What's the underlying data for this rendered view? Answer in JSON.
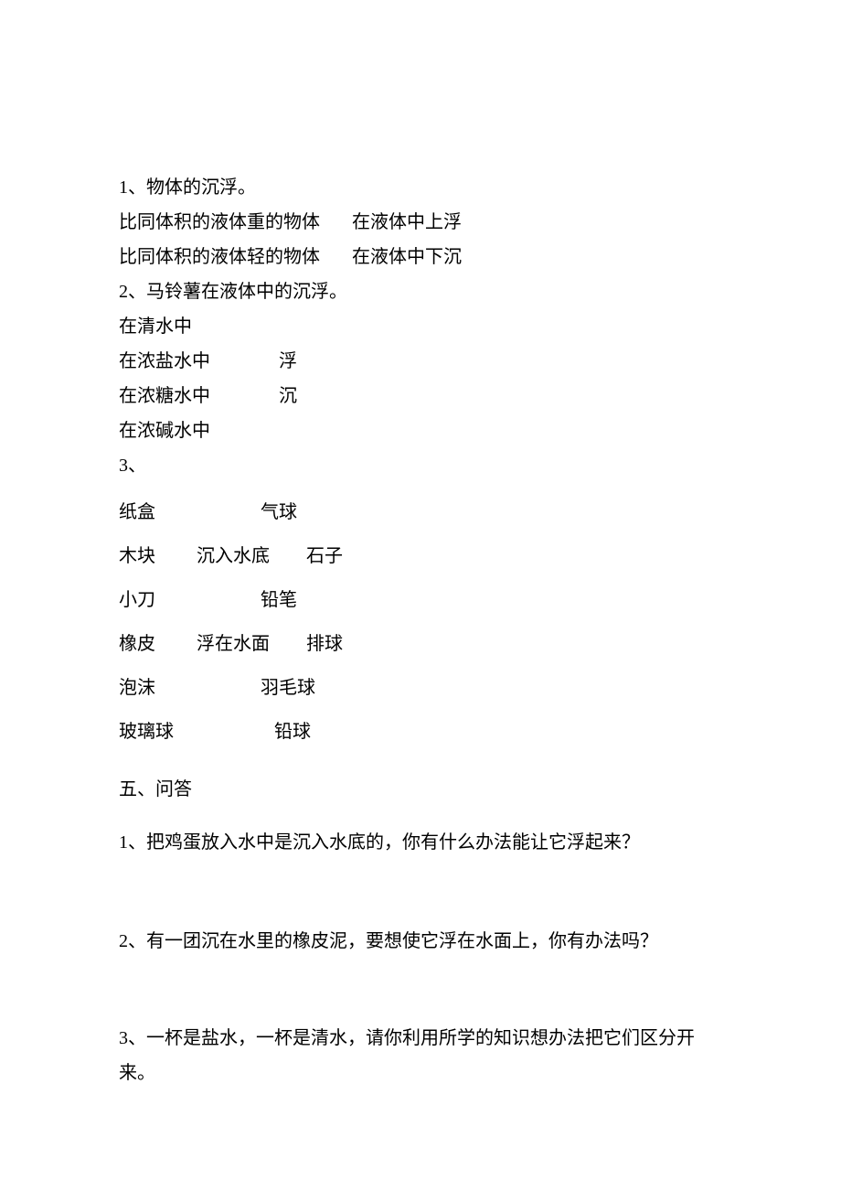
{
  "q1": {
    "title_num": "1",
    "title_sep": "、",
    "title_text": "物体的沉浮。",
    "row1_left": "比同体积的液体重的物体",
    "row1_right": "在液体中上浮",
    "row2_left": "比同体积的液体轻的物体",
    "row2_right": "在液体中下沉"
  },
  "q2": {
    "title_num": "2",
    "title_sep": "、",
    "title_text": "马铃薯在液体中的沉浮。",
    "r1": "在清水中",
    "r2": "在浓盐水中",
    "r2_right": "浮",
    "r3": "在浓糖水中",
    "r3_right": "沉",
    "r4": "在浓碱水中"
  },
  "q3": {
    "title_num": "3",
    "title_sep": "、",
    "col_left": [
      "纸盒",
      "木块",
      "小刀",
      "橡皮",
      "泡沫",
      "玻璃球"
    ],
    "col_mid": [
      "",
      "沉入水底",
      "",
      "浮在水面",
      "",
      ""
    ],
    "col_right": [
      "气球",
      "石子",
      "铅笔",
      "排球",
      "羽毛球",
      "铅球"
    ]
  },
  "section5": {
    "heading": "五、问答",
    "q1_num": "1",
    "q1_sep": "、",
    "q1_text": "把鸡蛋放入水中是沉入水底的，你有什么办法能让它浮起来？",
    "q2_num": "2",
    "q2_sep": "、",
    "q2_text": "有一团沉在水里的橡皮泥，要想使它浮在水面上，你有办法吗？",
    "q3_num": "3",
    "q3_sep": "、",
    "q3_text": "一杯是盐水，一杯是清水，请你利用所学的知识想办法把它们区分开来。"
  }
}
